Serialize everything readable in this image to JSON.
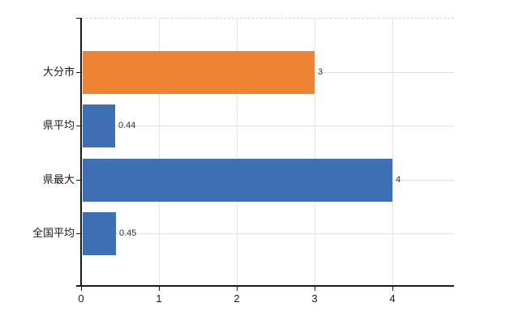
{
  "chart_data": {
    "type": "bar",
    "orientation": "horizontal",
    "title": "",
    "xlabel": "",
    "ylabel": "",
    "categories": [
      "大分市",
      "県平均",
      "県最大",
      "全国平均"
    ],
    "values": [
      3,
      0.44,
      4,
      0.45
    ],
    "value_labels": [
      "3",
      "0.44",
      "4",
      "0.45"
    ],
    "bar_colors": [
      "#EE8433",
      "#3E6FB4",
      "#3E6FB4",
      "#3E6FB4"
    ],
    "x_ticks": [
      0,
      1,
      2,
      3,
      4
    ],
    "x_tick_labels": [
      "0",
      "1",
      "2",
      "3",
      "4"
    ],
    "xlim": [
      0,
      4.79
    ],
    "grid": true,
    "legend": false
  },
  "colors": {
    "bar_orange": "#EE8433",
    "bar_blue": "#3E6FB4",
    "gridline": "#E2E5DE",
    "axis": "#1A1A1A",
    "plot_border_dashed": "#D5D5CC",
    "category_text": "#1A1A1A",
    "value_text": "#333333",
    "background": "#FFFFFF"
  }
}
